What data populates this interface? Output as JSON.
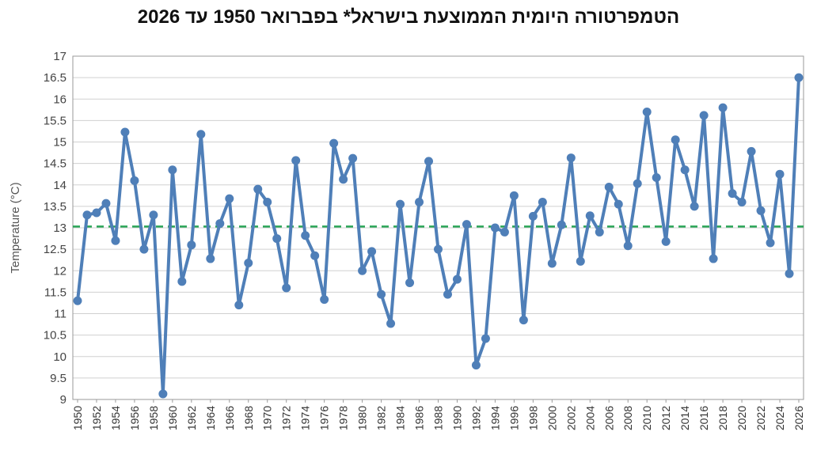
{
  "chart_data": {
    "type": "line",
    "title": "הטמפרטורה היומית הממוצעת בישראל* בפברואר 1950 עד 2026",
    "xlabel": "",
    "ylabel": "Temperature (°C)",
    "ylim": [
      9,
      17
    ],
    "yticks": [
      "9",
      "9.5",
      "10",
      "10.5",
      "11",
      "11.5",
      "12",
      "12.5",
      "13",
      "13.5",
      "14",
      "14.5",
      "15",
      "15.5",
      "16",
      "16.5",
      "17"
    ],
    "xlim": [
      1950,
      2026
    ],
    "xticks": [
      "1950",
      "1952",
      "1954",
      "1956",
      "1958",
      "1960",
      "1962",
      "1964",
      "1966",
      "1968",
      "1970",
      "1972",
      "1974",
      "1976",
      "1978",
      "1980",
      "1982",
      "1984",
      "1986",
      "1988",
      "1990",
      "1992",
      "1994",
      "1996",
      "1998",
      "2000",
      "2002",
      "2004",
      "2006",
      "2008",
      "2010",
      "2012",
      "2014",
      "2016",
      "2018",
      "2020",
      "2022",
      "2024",
      "2026"
    ],
    "grid": true,
    "reference_line": {
      "value": 13.03,
      "color": "#2aa557",
      "style": "dashed"
    },
    "series": [
      {
        "color": "#4f7fb8",
        "x": [
          1950,
          1951,
          1952,
          1953,
          1954,
          1955,
          1956,
          1957,
          1958,
          1959,
          1960,
          1961,
          1962,
          1963,
          1964,
          1965,
          1966,
          1967,
          1968,
          1969,
          1970,
          1971,
          1972,
          1973,
          1974,
          1975,
          1976,
          1977,
          1978,
          1979,
          1980,
          1981,
          1982,
          1983,
          1984,
          1985,
          1986,
          1987,
          1988,
          1989,
          1990,
          1991,
          1992,
          1993,
          1994,
          1995,
          1996,
          1997,
          1998,
          1999,
          2000,
          2001,
          2002,
          2003,
          2004,
          2005,
          2006,
          2007,
          2008,
          2009,
          2010,
          2011,
          2012,
          2013,
          2014,
          2015,
          2016,
          2017,
          2018,
          2019,
          2020,
          2021,
          2022,
          2023,
          2024,
          2025,
          2026
        ],
        "y": [
          11.3,
          13.3,
          13.35,
          13.57,
          12.7,
          15.23,
          14.1,
          12.5,
          13.3,
          9.13,
          14.35,
          11.75,
          12.6,
          15.18,
          12.28,
          13.1,
          13.68,
          11.2,
          12.18,
          13.9,
          13.6,
          12.75,
          11.6,
          14.57,
          12.82,
          12.35,
          11.33,
          14.97,
          14.13,
          14.62,
          12.0,
          12.45,
          11.45,
          10.77,
          13.55,
          11.72,
          13.6,
          14.55,
          12.5,
          11.45,
          11.8,
          13.08,
          9.8,
          10.42,
          13.0,
          12.9,
          13.75,
          10.85,
          13.27,
          13.6,
          12.17,
          13.07,
          14.63,
          12.22,
          13.28,
          12.9,
          13.95,
          13.55,
          12.58,
          14.03,
          15.7,
          14.17,
          12.68,
          15.05,
          14.35,
          13.5,
          15.62,
          12.28,
          15.8,
          13.8,
          13.6,
          14.78,
          13.4,
          12.65,
          14.25,
          11.93,
          16.5
        ]
      }
    ]
  }
}
